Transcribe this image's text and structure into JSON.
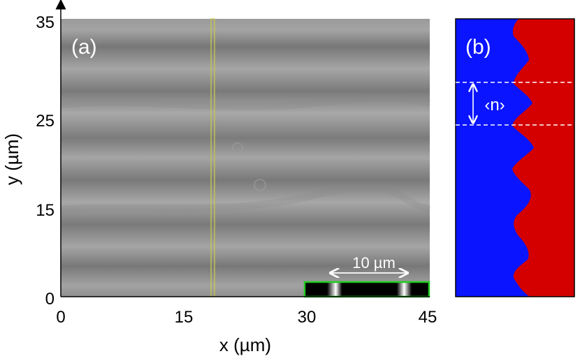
{
  "panel_a": {
    "label": "(a)",
    "scale_bar_label": "10 µm",
    "x_axis": {
      "title": "x (µm)",
      "ticks": [
        "0",
        "15",
        "30",
        "45"
      ],
      "range": [
        0,
        45
      ]
    },
    "y_axis": {
      "title": "y (µm)",
      "ticks": [
        "0",
        "15",
        "25",
        "35"
      ],
      "range": [
        0,
        35
      ]
    }
  },
  "panel_b": {
    "label": "(b)",
    "period_label": "‹n›",
    "colors": {
      "left_region": "#0a14ff",
      "right_region": "#d40000"
    }
  },
  "colors": {
    "image_gray": "#8a8a8a",
    "line_profile": "#c8c84a",
    "inset_border": "#22cc22",
    "dashed_line": "#ffffff"
  }
}
